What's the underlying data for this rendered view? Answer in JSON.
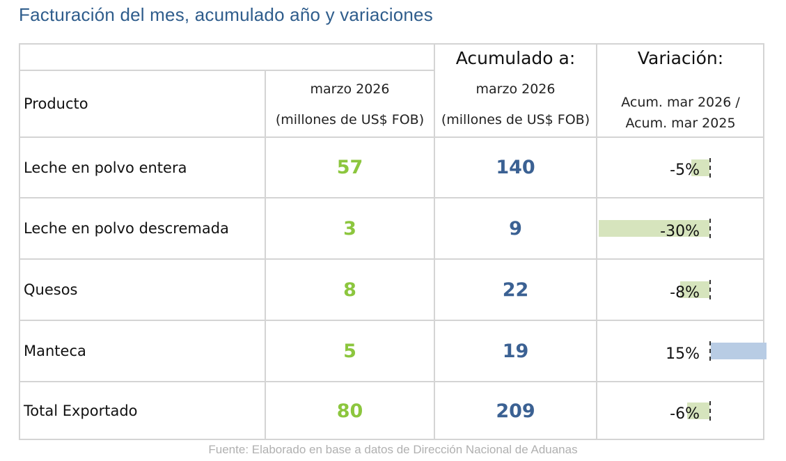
{
  "title": "Facturación del mes, acumulado año y variaciones",
  "header": {
    "producto": "Producto",
    "mes_line1": "marzo 2026",
    "mes_line2": "(millones de US$ FOB)",
    "acum_title": "Acumulado a:",
    "acum_line1": "marzo 2026",
    "acum_line2": "(millones de US$ FOB)",
    "var_title": "Variación:",
    "var_line1": "Acum. mar 2026 /",
    "var_line2": "Acum. mar 2025"
  },
  "rows": [
    {
      "producto": "Leche en polvo entera",
      "mes": "57",
      "acumulado": "140",
      "variacion": "-5%",
      "variacion_value": -5
    },
    {
      "producto": "Leche en polvo descremada",
      "mes": "3",
      "acumulado": "9",
      "variacion": "-30%",
      "variacion_value": -30
    },
    {
      "producto": "Quesos",
      "mes": "8",
      "acumulado": "22",
      "variacion": "-8%",
      "variacion_value": -8
    },
    {
      "producto": "Manteca",
      "mes": "5",
      "acumulado": "19",
      "variacion": "15%",
      "variacion_value": 15
    },
    {
      "producto": "Total Exportado",
      "mes": "80",
      "acumulado": "209",
      "variacion": "-6%",
      "variacion_value": -6
    }
  ],
  "colors": {
    "title": "#2f5d8c",
    "mes_values": "#8cc63e",
    "acum_values": "#3b6193",
    "negative_bar": "#d6e4bd",
    "positive_bar": "#b8cce4"
  },
  "source": "Fuente: Elaborado en base a datos de Dirección Nacional de Aduanas"
}
